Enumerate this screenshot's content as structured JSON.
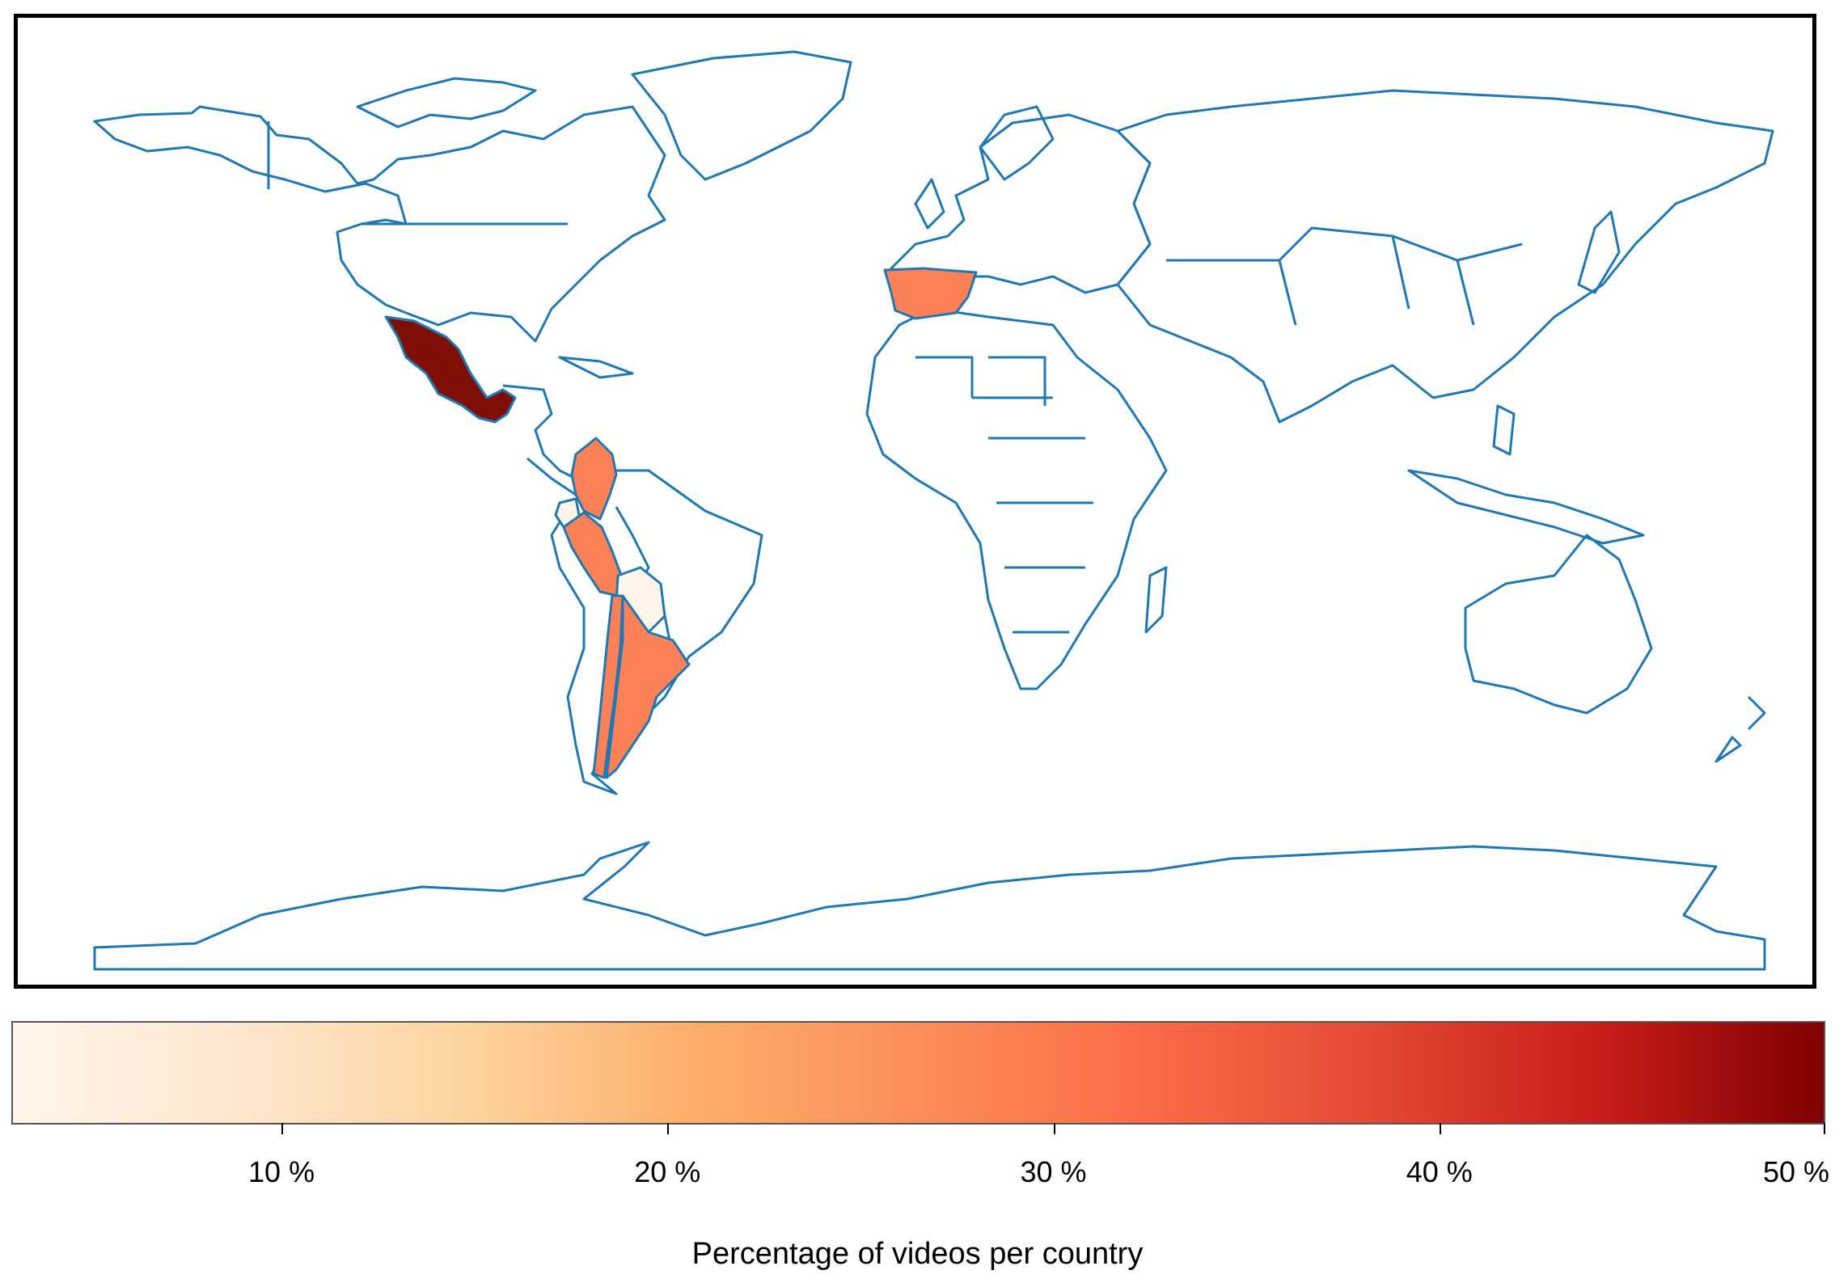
{
  "map": {
    "type": "choropleth",
    "projection": "plate carrée (equirectangular)",
    "outline_color": "#1f78b4",
    "default_fill": "#ffffff",
    "highlighted_countries": [
      {
        "name": "Mexico",
        "value": 50,
        "color": "#7f0f05"
      },
      {
        "name": "Spain",
        "value": 28,
        "color": "#fc8157"
      },
      {
        "name": "Colombia",
        "value": 28,
        "color": "#fc8157"
      },
      {
        "name": "Peru",
        "value": 28,
        "color": "#fc8157"
      },
      {
        "name": "Chile",
        "value": 28,
        "color": "#fc8157"
      },
      {
        "name": "Argentina",
        "value": 28,
        "color": "#fc8157"
      },
      {
        "name": "Ecuador",
        "value": 3,
        "color": "#fff5eb"
      },
      {
        "name": "Bolivia",
        "value": 3,
        "color": "#fff5eb"
      }
    ]
  },
  "colorbar": {
    "colormap": "OrRd",
    "range": [
      3,
      50
    ],
    "stops": [
      "#fff5eb",
      "#fee6ce",
      "#fdd49e",
      "#fdae6b",
      "#fc8d59",
      "#fc6b47",
      "#e24a33",
      "#c81d1a",
      "#7f0000"
    ],
    "ticks": [
      {
        "value": 10,
        "label": "10 %"
      },
      {
        "value": 20,
        "label": "20 %"
      },
      {
        "value": 30,
        "label": "30 %"
      },
      {
        "value": 40,
        "label": "40 %"
      },
      {
        "value": 50,
        "label": "50 %"
      }
    ],
    "label": "Percentage of videos per country"
  }
}
